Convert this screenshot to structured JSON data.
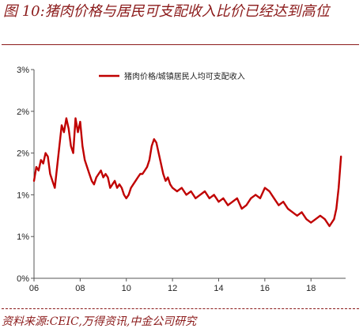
{
  "title": "图 10:猪肉价格与居民可支配收入比价已经达到高位",
  "source": "资料来源:CEIC,万得资讯,中金公司研究",
  "colors": {
    "series": "#c00000",
    "accent": "#8b1a1a",
    "axis": "#555555"
  },
  "chart_data": {
    "type": "line",
    "title": "",
    "xlabel": "",
    "ylabel": "",
    "xlim": [
      2006,
      2019.5
    ],
    "ylim": [
      0,
      3
    ],
    "x_ticks": [
      "06",
      "08",
      "10",
      "12",
      "14",
      "16",
      "18"
    ],
    "y_ticks": [
      "0%",
      "1%",
      "1%",
      "2%",
      "2%",
      "3%"
    ],
    "legend": "top-center",
    "grid": false,
    "series": [
      {
        "name": "猪肉价格/城镇居民人均可支配收入",
        "color": "#c00000",
        "x": [
          2006.0,
          2006.1,
          2006.2,
          2006.3,
          2006.4,
          2006.5,
          2006.6,
          2006.7,
          2006.8,
          2006.9,
          2007.0,
          2007.1,
          2007.2,
          2007.3,
          2007.4,
          2007.5,
          2007.6,
          2007.7,
          2007.8,
          2007.9,
          2008.0,
          2008.1,
          2008.2,
          2008.3,
          2008.4,
          2008.5,
          2008.6,
          2008.7,
          2008.8,
          2008.9,
          2009.0,
          2009.1,
          2009.2,
          2009.3,
          2009.4,
          2009.5,
          2009.6,
          2009.7,
          2009.8,
          2009.9,
          2010.0,
          2010.1,
          2010.2,
          2010.3,
          2010.4,
          2010.5,
          2010.6,
          2010.7,
          2010.8,
          2010.9,
          2011.0,
          2011.1,
          2011.2,
          2011.3,
          2011.4,
          2011.5,
          2011.6,
          2011.7,
          2011.8,
          2011.9,
          2012.0,
          2012.2,
          2012.4,
          2012.6,
          2012.8,
          2013.0,
          2013.2,
          2013.4,
          2013.6,
          2013.8,
          2014.0,
          2014.2,
          2014.4,
          2014.6,
          2014.8,
          2015.0,
          2015.2,
          2015.4,
          2015.6,
          2015.8,
          2016.0,
          2016.2,
          2016.4,
          2016.6,
          2016.8,
          2017.0,
          2017.2,
          2017.4,
          2017.6,
          2017.8,
          2018.0,
          2018.2,
          2018.4,
          2018.6,
          2018.8,
          2019.0,
          2019.1,
          2019.2,
          2019.3
        ],
        "values": [
          1.4,
          1.6,
          1.55,
          1.7,
          1.65,
          1.8,
          1.75,
          1.5,
          1.4,
          1.3,
          1.6,
          1.9,
          2.2,
          2.1,
          2.3,
          2.15,
          1.9,
          1.8,
          2.3,
          2.1,
          2.25,
          1.9,
          1.7,
          1.6,
          1.5,
          1.4,
          1.35,
          1.45,
          1.5,
          1.55,
          1.45,
          1.5,
          1.45,
          1.3,
          1.35,
          1.4,
          1.3,
          1.35,
          1.3,
          1.2,
          1.15,
          1.2,
          1.3,
          1.35,
          1.4,
          1.45,
          1.5,
          1.5,
          1.55,
          1.6,
          1.7,
          1.9,
          2.0,
          1.95,
          1.8,
          1.65,
          1.5,
          1.4,
          1.45,
          1.35,
          1.3,
          1.25,
          1.3,
          1.2,
          1.25,
          1.15,
          1.2,
          1.25,
          1.15,
          1.2,
          1.1,
          1.15,
          1.05,
          1.1,
          1.15,
          1.0,
          1.05,
          1.15,
          1.2,
          1.15,
          1.3,
          1.25,
          1.15,
          1.05,
          1.1,
          1.0,
          0.95,
          0.9,
          0.95,
          0.85,
          0.8,
          0.85,
          0.9,
          0.85,
          0.75,
          0.85,
          1.0,
          1.3,
          1.75
        ]
      }
    ]
  }
}
